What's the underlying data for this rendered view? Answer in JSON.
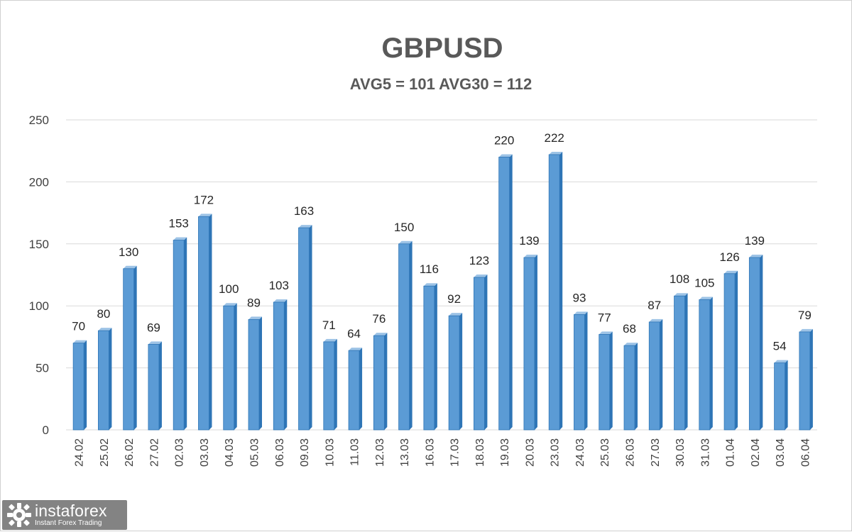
{
  "chart_data": {
    "type": "bar",
    "title": "GBPUSD",
    "subtitle": "AVG5 = 101 AVG30 = 112",
    "categories": [
      "24.02",
      "25.02",
      "26.02",
      "27.02",
      "02.03",
      "03.03",
      "04.03",
      "05.03",
      "06.03",
      "09.03",
      "10.03",
      "11.03",
      "12.03",
      "13.03",
      "16.03",
      "17.03",
      "18.03",
      "19.03",
      "20.03",
      "23.03",
      "24.03",
      "25.03",
      "26.03",
      "27.03",
      "30.03",
      "31.03",
      "01.04",
      "02.04",
      "03.04",
      "06.04"
    ],
    "values": [
      70,
      80,
      130,
      69,
      153,
      172,
      100,
      89,
      103,
      163,
      71,
      64,
      76,
      150,
      116,
      92,
      123,
      220,
      139,
      222,
      93,
      77,
      68,
      87,
      108,
      105,
      126,
      139,
      54,
      79
    ],
    "ylim": [
      0,
      250
    ],
    "yticks": [
      0,
      50,
      100,
      150,
      200,
      250
    ],
    "grid": true,
    "bar_color": "#5b9bd5",
    "bar_dark": "#2e75b6",
    "bar_light": "#9dc3e6"
  },
  "watermark": {
    "brand": "instaforex",
    "tagline": "Instant Forex Trading",
    "icon": "instaforex-logo-icon"
  }
}
